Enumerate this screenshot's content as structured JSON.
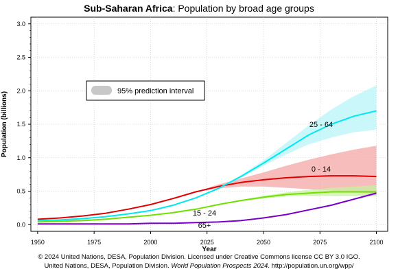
{
  "chart_data": {
    "type": "line",
    "title_bold": "Sub-Saharan Africa",
    "title_rest": ": Population by broad age groups",
    "xlabel": "Year",
    "ylabel": "Population (billions)",
    "xlim": [
      1947,
      2105
    ],
    "ylim": [
      -0.1,
      3.1
    ],
    "xticks": [
      1950,
      1975,
      2000,
      2025,
      2050,
      2075,
      2100
    ],
    "yticks": [
      0.0,
      0.5,
      1.0,
      1.5,
      2.0,
      2.5,
      3.0
    ],
    "ytick_labels": [
      "0.0",
      "0.5",
      "1.0",
      "1.5",
      "2.0",
      "2.5",
      "3.0"
    ],
    "grid": true,
    "legend": {
      "label": "95% prediction interval",
      "position": "upper-left"
    },
    "series": [
      {
        "label": "0 - 14",
        "color": "#e00000",
        "band_color": "#f4a7a7",
        "x": [
          1950,
          1960,
          1970,
          1980,
          1990,
          2000,
          2010,
          2020,
          2030,
          2040,
          2050,
          2060,
          2070,
          2080,
          2090,
          2100
        ],
        "values": [
          0.08,
          0.1,
          0.13,
          0.17,
          0.23,
          0.3,
          0.39,
          0.49,
          0.57,
          0.63,
          0.67,
          0.7,
          0.72,
          0.73,
          0.73,
          0.72
        ],
        "upper": [
          null,
          null,
          null,
          null,
          null,
          null,
          null,
          0.49,
          0.6,
          0.69,
          0.78,
          0.88,
          0.97,
          1.05,
          1.12,
          1.18
        ],
        "lower": [
          null,
          null,
          null,
          null,
          null,
          null,
          null,
          0.49,
          0.54,
          0.57,
          0.57,
          0.55,
          0.53,
          0.51,
          0.48,
          0.46
        ]
      },
      {
        "label": "15 - 24",
        "color": "#70e000",
        "band_color": "#c8f0a0",
        "x": [
          1950,
          1960,
          1970,
          1980,
          1990,
          2000,
          2010,
          2020,
          2030,
          2040,
          2050,
          2060,
          2070,
          2080,
          2090,
          2100
        ],
        "values": [
          0.04,
          0.05,
          0.06,
          0.08,
          0.11,
          0.14,
          0.18,
          0.23,
          0.3,
          0.36,
          0.41,
          0.45,
          0.47,
          0.49,
          0.49,
          0.49
        ],
        "upper": [
          null,
          null,
          null,
          null,
          null,
          null,
          null,
          0.23,
          0.3,
          0.37,
          0.43,
          0.48,
          0.52,
          0.55,
          0.57,
          0.59
        ],
        "lower": [
          null,
          null,
          null,
          null,
          null,
          null,
          null,
          0.23,
          0.3,
          0.35,
          0.39,
          0.42,
          0.43,
          0.43,
          0.43,
          0.42
        ]
      },
      {
        "label": "25 - 64",
        "color": "#00e8f0",
        "band_color": "#b8f4f8",
        "x": [
          1950,
          1960,
          1970,
          1980,
          1990,
          2000,
          2010,
          2020,
          2030,
          2040,
          2050,
          2060,
          2070,
          2080,
          2090,
          2100
        ],
        "values": [
          0.06,
          0.07,
          0.09,
          0.12,
          0.16,
          0.21,
          0.29,
          0.4,
          0.54,
          0.72,
          0.92,
          1.13,
          1.34,
          1.5,
          1.62,
          1.7
        ],
        "upper": [
          null,
          null,
          null,
          null,
          null,
          null,
          null,
          0.4,
          0.55,
          0.74,
          0.96,
          1.22,
          1.48,
          1.72,
          1.92,
          2.08
        ],
        "lower": [
          null,
          null,
          null,
          null,
          null,
          null,
          null,
          0.4,
          0.53,
          0.7,
          0.88,
          1.05,
          1.2,
          1.3,
          1.38,
          1.42
        ]
      },
      {
        "label": "65+",
        "color": "#7800c8",
        "band_color": "#d8b8f0",
        "x": [
          1950,
          1960,
          1970,
          1980,
          1990,
          2000,
          2010,
          2020,
          2030,
          2040,
          2050,
          2060,
          2070,
          2080,
          2090,
          2100
        ],
        "values": [
          0.01,
          0.01,
          0.01,
          0.01,
          0.01,
          0.02,
          0.02,
          0.03,
          0.04,
          0.06,
          0.1,
          0.15,
          0.22,
          0.29,
          0.38,
          0.47
        ],
        "upper": [
          null,
          null,
          null,
          null,
          null,
          null,
          null,
          0.03,
          0.04,
          0.06,
          0.1,
          0.15,
          0.22,
          0.3,
          0.39,
          0.49
        ],
        "lower": [
          null,
          null,
          null,
          null,
          null,
          null,
          null,
          0.03,
          0.04,
          0.06,
          0.1,
          0.15,
          0.21,
          0.28,
          0.37,
          0.45
        ]
      }
    ]
  },
  "footer": {
    "line1": "© 2024 United Nations, DESA, Population Division. Licensed under Creative Commons license CC BY 3.0 IGO.",
    "line2_prefix": "United Nations, DESA, Population Division. ",
    "line2_italic": "World Population Prospects 2024",
    "line2_suffix": ". http://population.un.org/wpp/"
  }
}
